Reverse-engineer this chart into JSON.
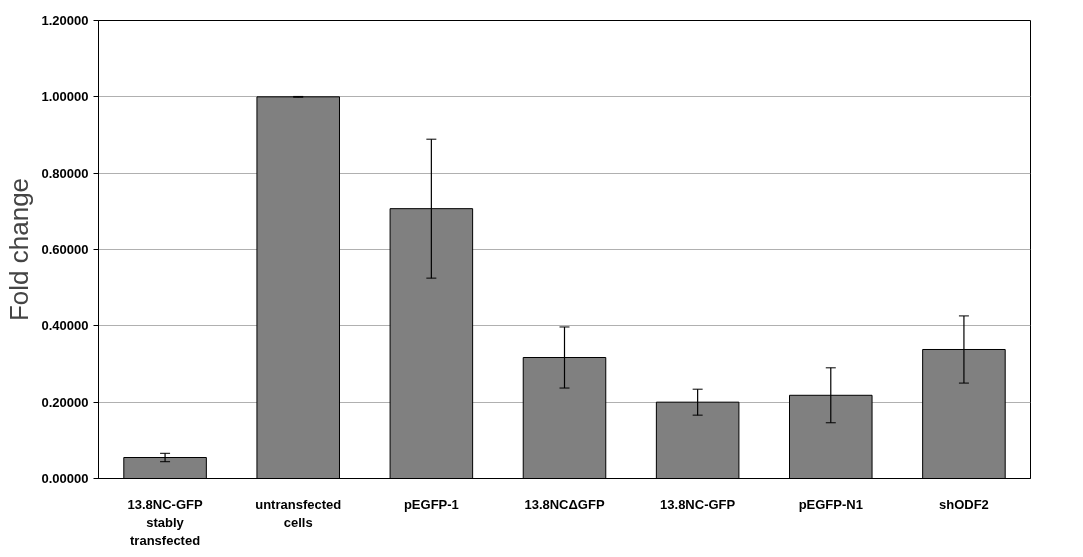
{
  "chart_data": {
    "type": "bar",
    "ylabel": "Fold change",
    "categories": [
      "13.8NC-GFP\nstably\ntransfected",
      "untransfected\ncells",
      "pEGFP-1",
      "13.8NCΔGFP",
      "13.8NC-GFP",
      "pEGFP-N1",
      "shODF2"
    ],
    "values": [
      0.055,
      1.0,
      0.707,
      0.317,
      0.2,
      0.218,
      0.338
    ],
    "errors": [
      0.011,
      0.001,
      0.182,
      0.08,
      0.034,
      0.072,
      0.088
    ],
    "color": "#808080",
    "ylim": [
      0,
      1.2
    ],
    "yticks": [
      {
        "value": 0,
        "label": "0.00000"
      },
      {
        "value": 0.2,
        "label": "0.20000"
      },
      {
        "value": 0.4,
        "label": "0.40000"
      },
      {
        "value": 0.6,
        "label": "0.60000"
      },
      {
        "value": 0.8,
        "label": "0.80000"
      },
      {
        "value": 1.0,
        "label": "1.00000"
      },
      {
        "value": 1.2,
        "label": "1.20000"
      }
    ],
    "grid": "y"
  }
}
